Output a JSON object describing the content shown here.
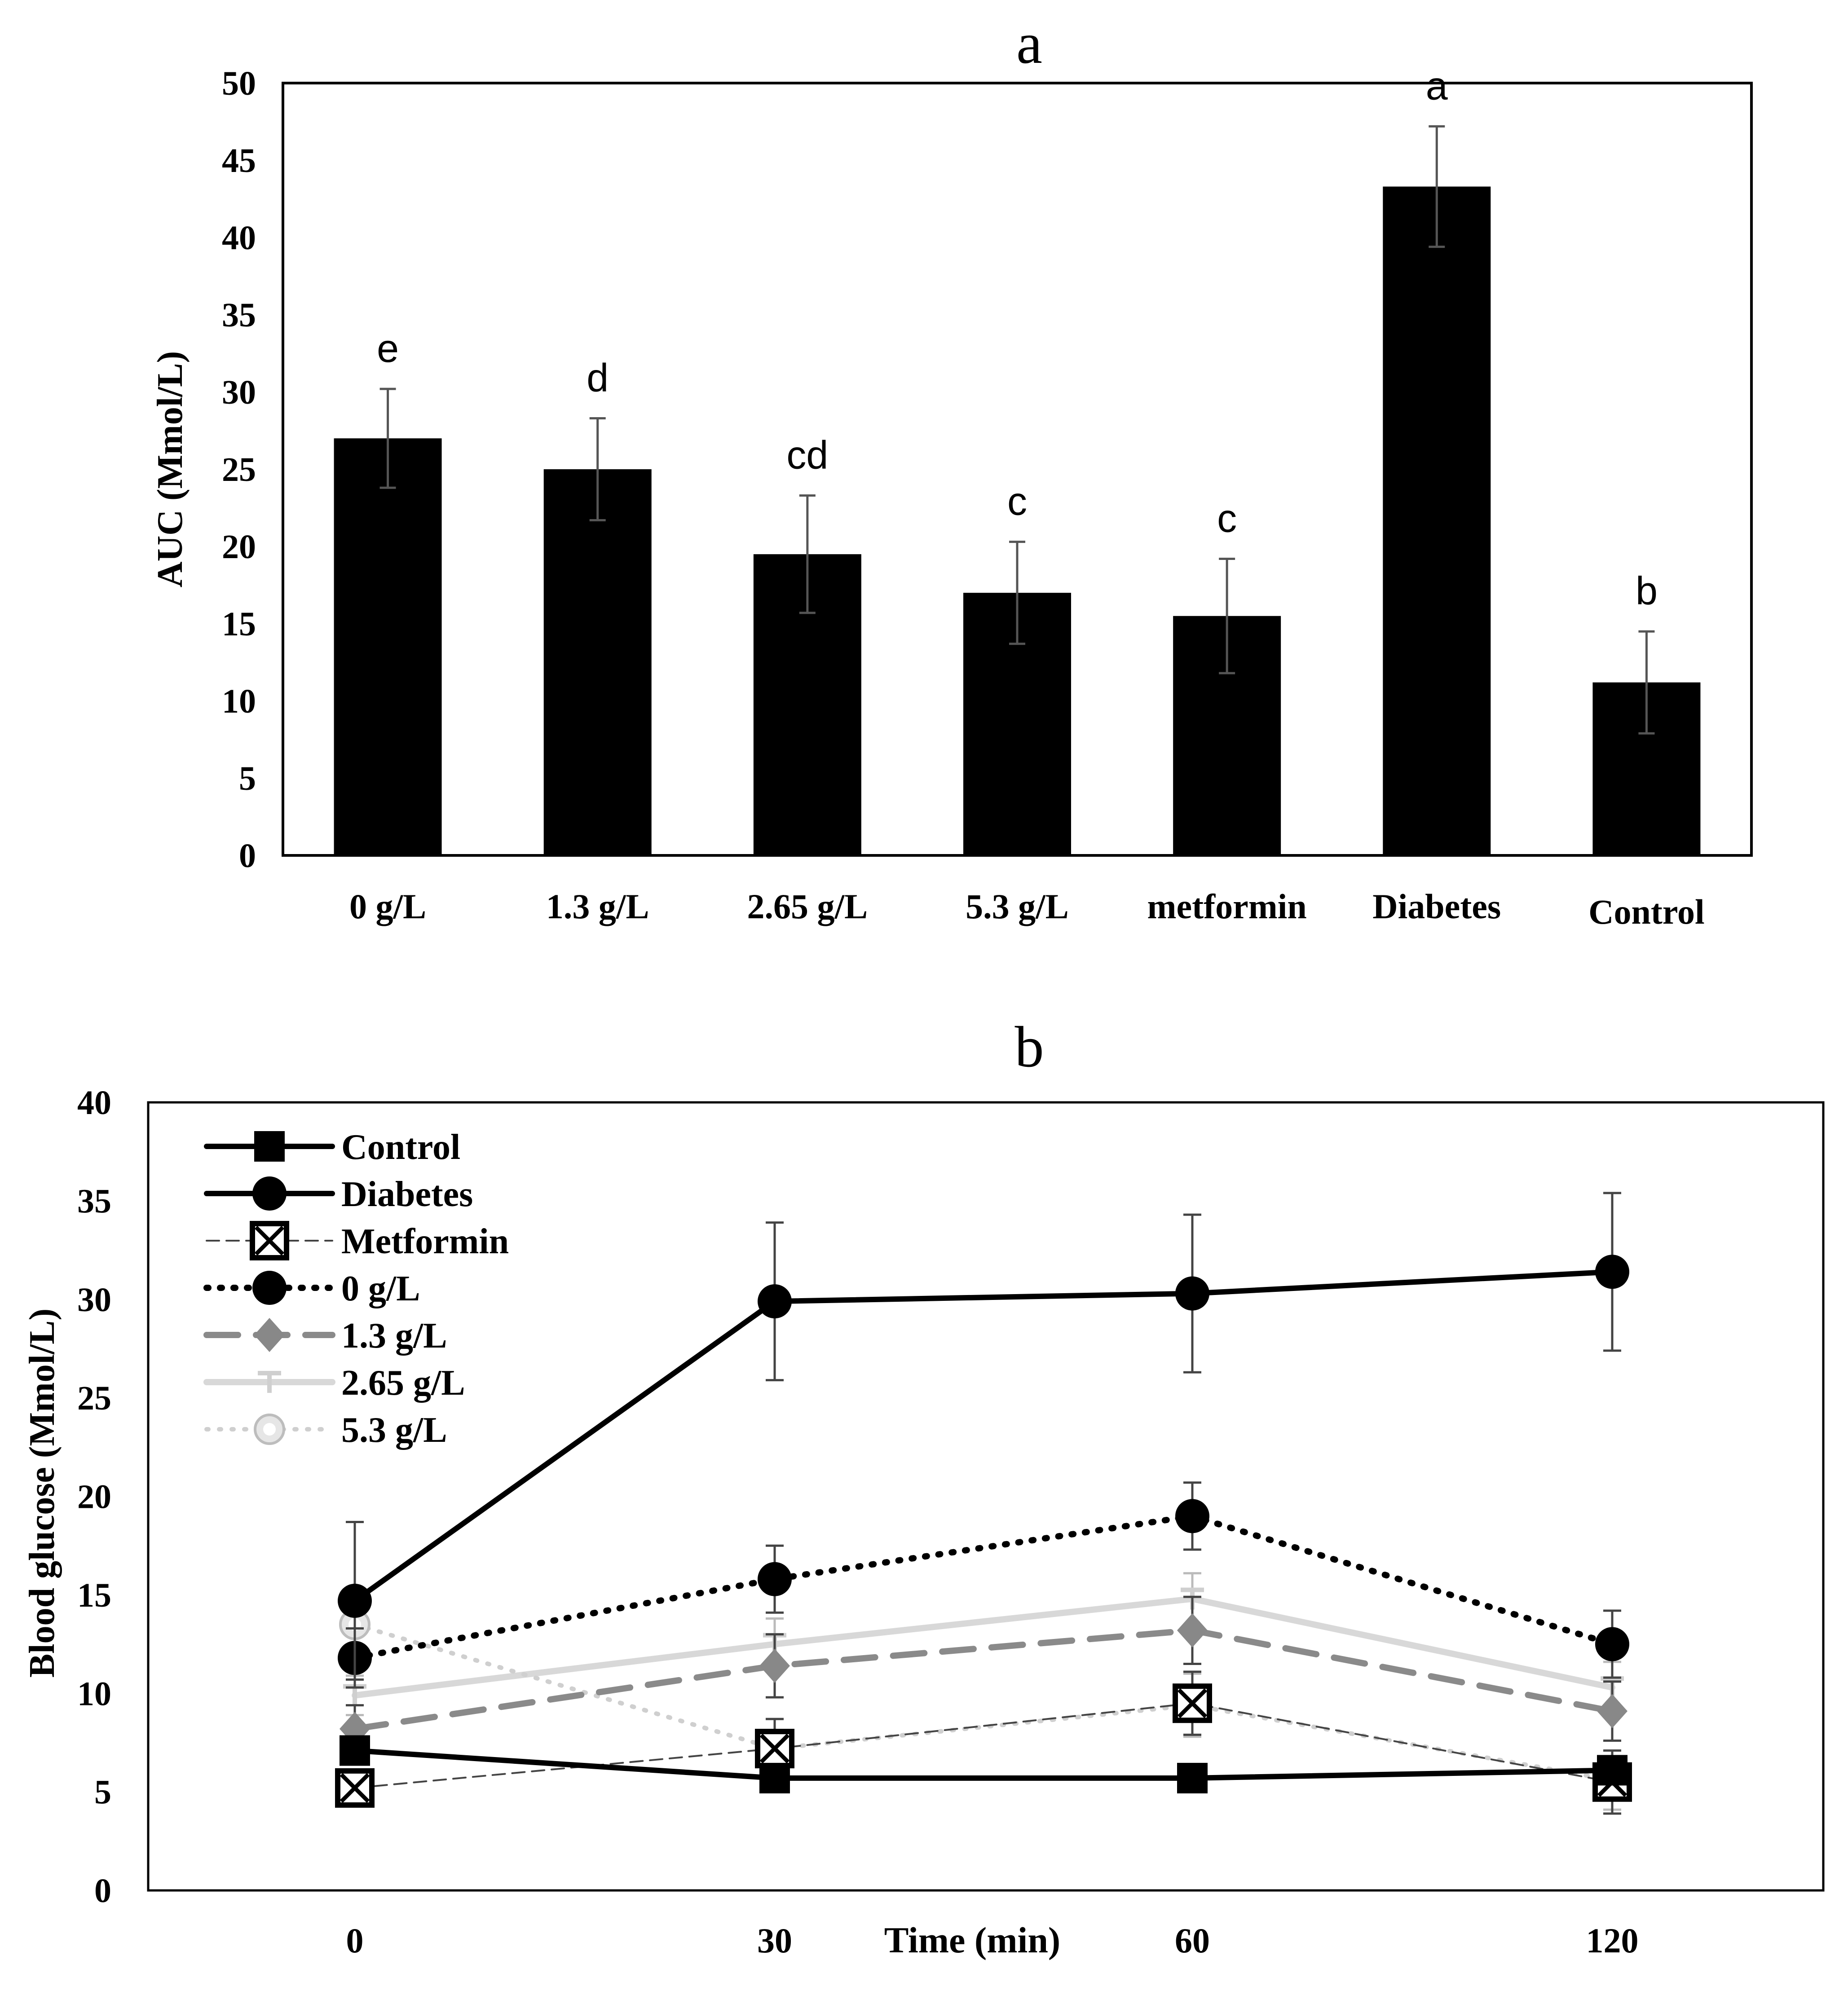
{
  "chart_data": [
    {
      "id": "a",
      "type": "bar",
      "panel_label": "a",
      "title": "",
      "xlabel": "",
      "ylabel": "AUC (Mmol/L)",
      "ylim": [
        0,
        50
      ],
      "yticks": [
        0,
        5,
        10,
        15,
        20,
        25,
        30,
        35,
        40,
        45,
        50
      ],
      "categories": [
        "0 g/L",
        "1.3 g/L",
        "2.65 g/L",
        "5.3 g/L",
        "metformin",
        "Diabetes",
        "Control"
      ],
      "values": [
        27.0,
        25.0,
        19.5,
        17.0,
        15.5,
        43.3,
        11.2
      ],
      "errors": [
        3.2,
        3.3,
        3.8,
        3.3,
        3.7,
        3.9,
        3.3
      ],
      "significance": [
        "e",
        "d",
        "cd",
        "c",
        "c",
        "a",
        "b"
      ],
      "bar_color": "#000000"
    },
    {
      "id": "b",
      "type": "line",
      "panel_label": "b",
      "title": "",
      "xlabel": "Time (min)",
      "ylabel": "Blood glucose (Mmol/L)",
      "ylim": [
        0,
        40
      ],
      "yticks": [
        0,
        5,
        10,
        15,
        20,
        25,
        30,
        35,
        40
      ],
      "x": [
        0,
        30,
        60,
        120
      ],
      "x_tick_labels": [
        "0",
        "30",
        "60",
        "120"
      ],
      "legend_position": "top-left",
      "series": [
        {
          "name": "Control",
          "values": [
            7.1,
            5.7,
            5.7,
            6.1
          ],
          "errors": [
            0.6,
            0.6,
            0.5,
            0.6
          ],
          "color": "#000000",
          "dash": "",
          "width": 12,
          "marker": "square"
        },
        {
          "name": "Diabetes",
          "values": [
            14.7,
            29.9,
            30.3,
            31.4
          ],
          "errors": [
            4.0,
            4.0,
            4.0,
            4.0
          ],
          "color": "#000000",
          "dash": "",
          "width": 12,
          "marker": "circle"
        },
        {
          "name": "Metformin",
          "values": [
            5.2,
            7.2,
            9.5,
            5.5
          ],
          "errors": [
            0.8,
            1.5,
            1.6,
            1.6
          ],
          "color": "#444444",
          "dash": "28 16",
          "width": 4,
          "marker": "xsquare"
        },
        {
          "name": "0 g/L",
          "values": [
            11.8,
            15.8,
            19.0,
            12.5
          ],
          "errors": [
            1.5,
            1.7,
            1.7,
            1.7
          ],
          "color": "#000000",
          "dash": "4 26",
          "width": 14,
          "marker": "circle"
        },
        {
          "name": "1.3 g/L",
          "values": [
            8.2,
            11.4,
            13.2,
            9.1
          ],
          "errors": [
            1.2,
            1.6,
            1.7,
            1.5
          ],
          "color": "#8a8a8a",
          "dash": "70 40",
          "width": 14,
          "marker": "diamond"
        },
        {
          "name": "2.65 g/L",
          "values": [
            9.9,
            12.5,
            14.8,
            10.3
          ],
          "errors": [
            1.0,
            1.3,
            1.3,
            1.3
          ],
          "color": "#d8d8d8",
          "dash": "",
          "width": 14,
          "marker": "tee"
        },
        {
          "name": "5.3 g/L",
          "values": [
            13.5,
            7.2,
            9.4,
            5.6
          ],
          "errors": [
            1.4,
            1.5,
            1.6,
            1.5
          ],
          "color": "#cfcfcf",
          "dash": "4 24",
          "width": 10,
          "marker": "dotcircle"
        }
      ]
    }
  ]
}
